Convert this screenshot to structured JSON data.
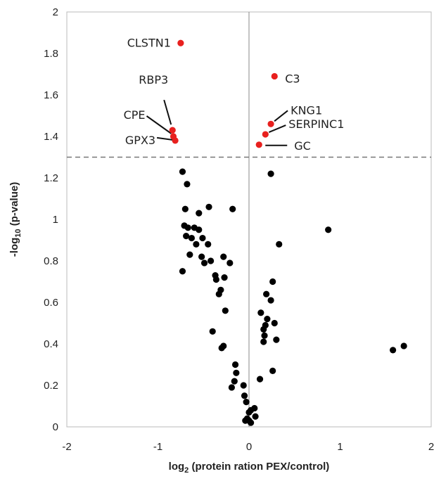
{
  "chart_data": {
    "type": "scatter",
    "xlabel_main": "log",
    "xlabel_sub": "2",
    "xlabel_rest": " (protein ration PEX/control)",
    "ylabel_main": "-log",
    "ylabel_sub": "10",
    "ylabel_rest": " (p-value)",
    "xlim": [
      -2,
      2
    ],
    "ylim": [
      0,
      2
    ],
    "x_ticks": [
      "-2",
      "-1",
      "0",
      "1",
      "2"
    ],
    "y_ticks": [
      "0",
      "0.2",
      "0.4",
      "0.6",
      "0.8",
      "1",
      "1.2",
      "1.4",
      "1.6",
      "1.8",
      "2"
    ],
    "significance_threshold": 1.3,
    "grid": false,
    "colors": {
      "significant": "#e8201e",
      "other": "#000000",
      "threshold": "#777777"
    },
    "significant_points": [
      {
        "label": "CLSTN1",
        "x": -0.75,
        "y": 1.85
      },
      {
        "label": "RBP3",
        "x": -0.84,
        "y": 1.43
      },
      {
        "label": "CPE",
        "x": -0.83,
        "y": 1.4
      },
      {
        "label": "GPX3",
        "x": -0.81,
        "y": 1.38
      },
      {
        "label": "C3",
        "x": 0.28,
        "y": 1.69
      },
      {
        "label": "KNG1",
        "x": 0.24,
        "y": 1.46
      },
      {
        "label": "SERPINC1",
        "x": 0.18,
        "y": 1.41
      },
      {
        "label": "GC",
        "x": 0.11,
        "y": 1.36
      }
    ],
    "other_points": [
      [
        -0.73,
        1.23
      ],
      [
        -0.68,
        1.17
      ],
      [
        -0.7,
        1.05
      ],
      [
        -0.71,
        0.97
      ],
      [
        -0.67,
        0.96
      ],
      [
        -0.6,
        0.96
      ],
      [
        -0.55,
        0.95
      ],
      [
        -0.55,
        1.03
      ],
      [
        -0.44,
        1.06
      ],
      [
        -0.18,
        1.05
      ],
      [
        -0.69,
        0.92
      ],
      [
        -0.63,
        0.91
      ],
      [
        -0.58,
        0.88
      ],
      [
        -0.51,
        0.91
      ],
      [
        -0.45,
        0.88
      ],
      [
        -0.65,
        0.83
      ],
      [
        -0.52,
        0.82
      ],
      [
        -0.49,
        0.79
      ],
      [
        -0.42,
        0.8
      ],
      [
        -0.28,
        0.82
      ],
      [
        -0.21,
        0.79
      ],
      [
        -0.73,
        0.75
      ],
      [
        -0.37,
        0.73
      ],
      [
        -0.36,
        0.71
      ],
      [
        -0.27,
        0.72
      ],
      [
        -0.31,
        0.66
      ],
      [
        -0.33,
        0.64
      ],
      [
        -0.26,
        0.56
      ],
      [
        -0.4,
        0.46
      ],
      [
        -0.3,
        0.38
      ],
      [
        -0.28,
        0.39
      ],
      [
        -0.15,
        0.3
      ],
      [
        -0.14,
        0.26
      ],
      [
        -0.16,
        0.22
      ],
      [
        -0.19,
        0.19
      ],
      [
        -0.06,
        0.2
      ],
      [
        -0.05,
        0.15
      ],
      [
        -0.03,
        0.12
      ],
      [
        0.02,
        0.08
      ],
      [
        0.06,
        0.09
      ],
      [
        0.07,
        0.05
      ],
      [
        -0.02,
        0.04
      ],
      [
        0.0,
        0.03
      ],
      [
        0.02,
        0.02
      ],
      [
        -0.04,
        0.03
      ],
      [
        0.0,
        0.07
      ],
      [
        0.24,
        1.22
      ],
      [
        0.33,
        0.88
      ],
      [
        0.87,
        0.95
      ],
      [
        0.26,
        0.7
      ],
      [
        0.19,
        0.64
      ],
      [
        0.24,
        0.61
      ],
      [
        0.13,
        0.55
      ],
      [
        0.2,
        0.52
      ],
      [
        0.18,
        0.49
      ],
      [
        0.16,
        0.47
      ],
      [
        0.28,
        0.5
      ],
      [
        0.17,
        0.44
      ],
      [
        0.16,
        0.41
      ],
      [
        0.3,
        0.42
      ],
      [
        0.12,
        0.23
      ],
      [
        0.26,
        0.27
      ],
      [
        1.58,
        0.37
      ],
      [
        1.7,
        0.39
      ]
    ]
  }
}
